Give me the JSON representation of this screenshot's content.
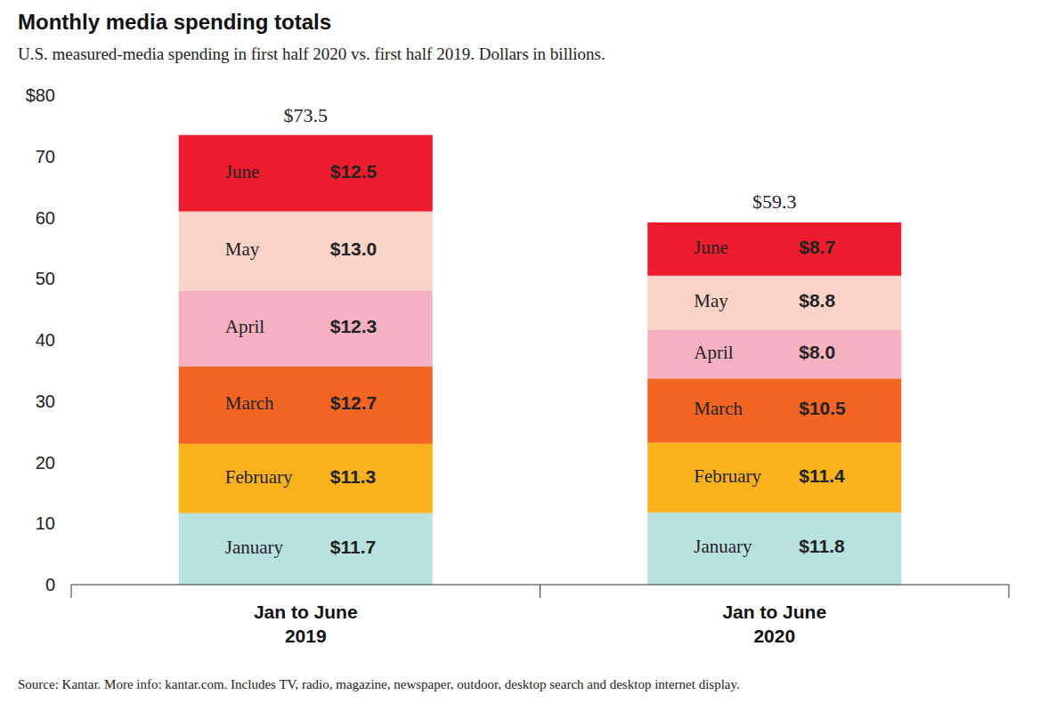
{
  "chart_data": {
    "type": "bar",
    "title": "Monthly media spending totals",
    "subtitle": "U.S. measured-media spending in first half 2020 vs. first half 2019. Dollars in billions.",
    "source": "Source: Kantar. More info: kantar.com. Includes TV, radio, magazine, newspaper, outdoor, desktop search and desktop internet display.",
    "categories": [
      "Jan to June 2019",
      "Jan to June 2020"
    ],
    "series": [
      {
        "name": "January",
        "color": "#b9e1de",
        "values": [
          11.7,
          11.8
        ],
        "value_labels": [
          "$11.7",
          "$11.8"
        ]
      },
      {
        "name": "February",
        "color": "#f9b21b",
        "values": [
          11.3,
          11.4
        ],
        "value_labels": [
          "$11.3",
          "$11.4"
        ]
      },
      {
        "name": "March",
        "color": "#f26522",
        "values": [
          12.7,
          10.5
        ],
        "value_labels": [
          "$12.7",
          "$10.5"
        ]
      },
      {
        "name": "April",
        "color": "#f5b1c2",
        "values": [
          12.3,
          8.0
        ],
        "value_labels": [
          "$12.3",
          "$8.0"
        ]
      },
      {
        "name": "May",
        "color": "#f9d3c7",
        "values": [
          13.0,
          8.8
        ],
        "value_labels": [
          "$13.0",
          "$8.8"
        ]
      },
      {
        "name": "June",
        "color": "#ed1c2e",
        "values": [
          12.5,
          8.7
        ],
        "value_labels": [
          "$12.5",
          "$8.7"
        ]
      }
    ],
    "totals": [
      73.5,
      59.3
    ],
    "total_labels": [
      "$73.5",
      "$59.3"
    ],
    "ylim": [
      0,
      80
    ],
    "yticks": [
      0,
      10,
      20,
      30,
      40,
      50,
      60,
      70,
      {
        "value": 80,
        "label": "$80"
      }
    ],
    "stacked": true,
    "data_labels": true,
    "grid": false
  }
}
